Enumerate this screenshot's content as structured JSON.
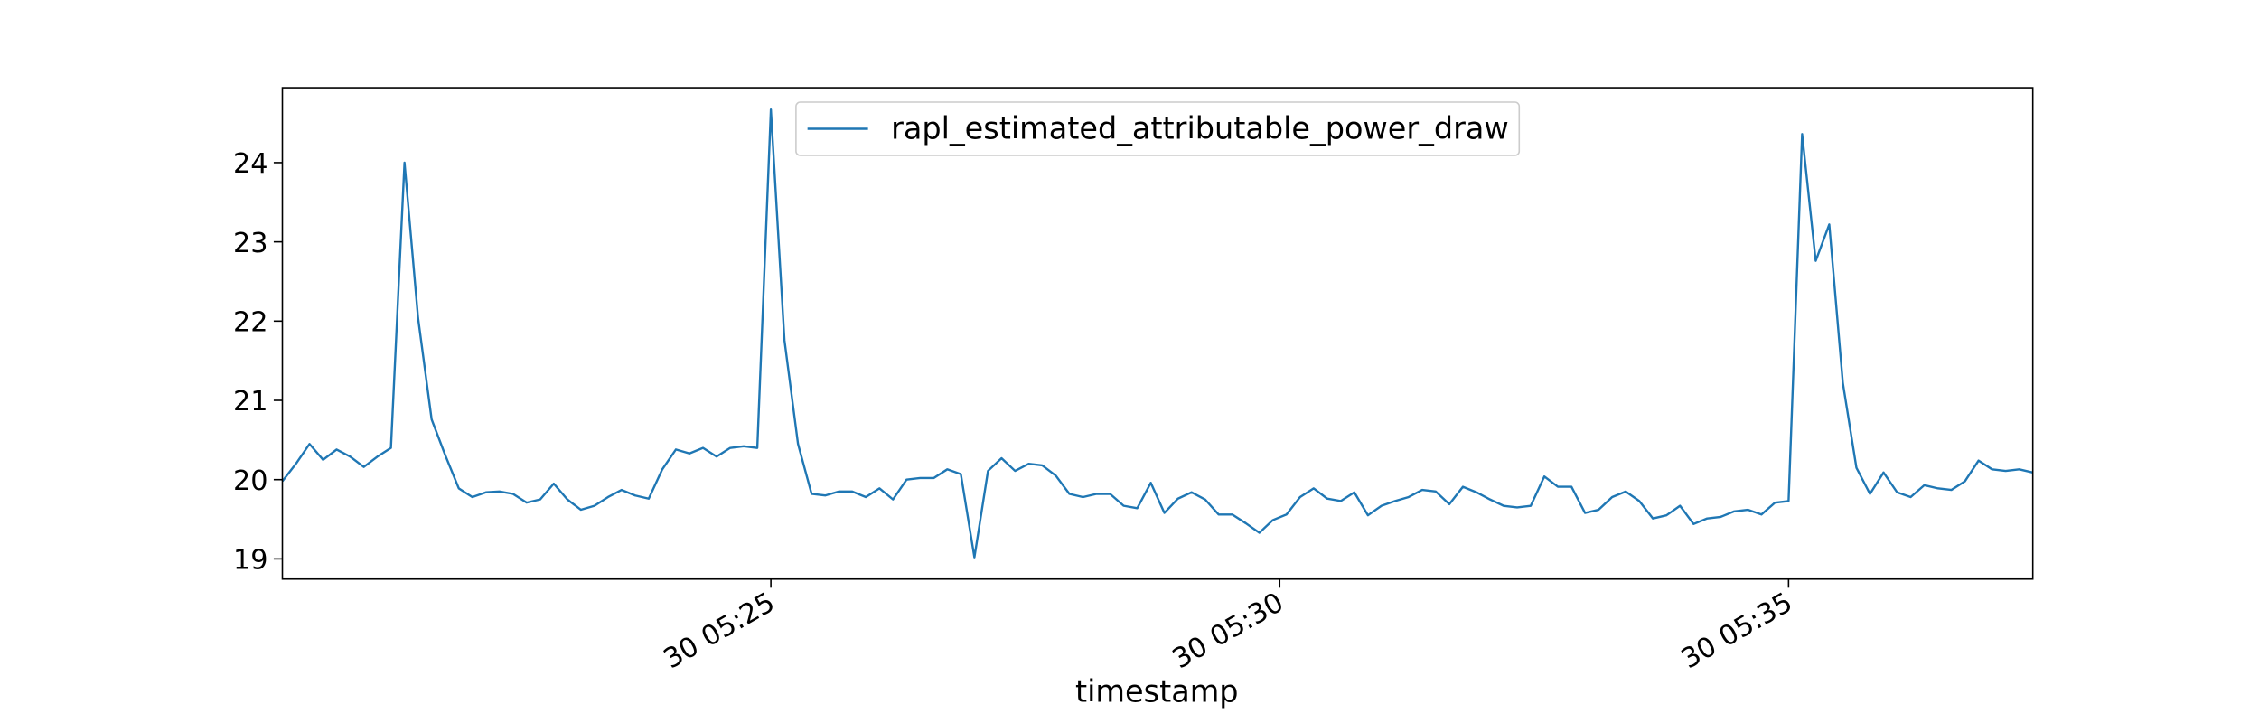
{
  "chart_data": {
    "type": "line",
    "xlabel": "timestamp",
    "legend": "upper center",
    "grid": false,
    "x": [
      "30 05:20:12",
      "30 05:20:20",
      "30 05:20:28",
      "30 05:20:36",
      "30 05:20:44",
      "30 05:20:52",
      "30 05:21:00",
      "30 05:21:08",
      "30 05:21:16",
      "30 05:21:24",
      "30 05:21:32",
      "30 05:21:40",
      "30 05:21:48",
      "30 05:21:56",
      "30 05:22:04",
      "30 05:22:12",
      "30 05:22:20",
      "30 05:22:28",
      "30 05:22:36",
      "30 05:22:44",
      "30 05:22:52",
      "30 05:23:00",
      "30 05:23:08",
      "30 05:23:16",
      "30 05:23:24",
      "30 05:23:32",
      "30 05:23:40",
      "30 05:23:48",
      "30 05:23:56",
      "30 05:24:04",
      "30 05:24:12",
      "30 05:24:20",
      "30 05:24:28",
      "30 05:24:36",
      "30 05:24:44",
      "30 05:24:52",
      "30 05:25:00",
      "30 05:25:08",
      "30 05:25:16",
      "30 05:25:24",
      "30 05:25:32",
      "30 05:25:40",
      "30 05:25:48",
      "30 05:25:56",
      "30 05:26:04",
      "30 05:26:12",
      "30 05:26:20",
      "30 05:26:28",
      "30 05:26:36",
      "30 05:26:44",
      "30 05:26:52",
      "30 05:27:00",
      "30 05:27:08",
      "30 05:27:16",
      "30 05:27:24",
      "30 05:27:32",
      "30 05:27:40",
      "30 05:27:48",
      "30 05:27:56",
      "30 05:28:04",
      "30 05:28:12",
      "30 05:28:20",
      "30 05:28:28",
      "30 05:28:36",
      "30 05:28:44",
      "30 05:28:52",
      "30 05:29:00",
      "30 05:29:08",
      "30 05:29:16",
      "30 05:29:24",
      "30 05:29:32",
      "30 05:29:40",
      "30 05:29:48",
      "30 05:29:56",
      "30 05:30:04",
      "30 05:30:12",
      "30 05:30:20",
      "30 05:30:28",
      "30 05:30:36",
      "30 05:30:44",
      "30 05:30:52",
      "30 05:31:00",
      "30 05:31:08",
      "30 05:31:16",
      "30 05:31:24",
      "30 05:31:32",
      "30 05:31:40",
      "30 05:31:48",
      "30 05:31:56",
      "30 05:32:04",
      "30 05:32:12",
      "30 05:32:20",
      "30 05:32:28",
      "30 05:32:36",
      "30 05:32:44",
      "30 05:32:52",
      "30 05:33:00",
      "30 05:33:08",
      "30 05:33:16",
      "30 05:33:24",
      "30 05:33:32",
      "30 05:33:40",
      "30 05:33:48",
      "30 05:33:56",
      "30 05:34:04",
      "30 05:34:12",
      "30 05:34:20",
      "30 05:34:28",
      "30 05:34:36",
      "30 05:34:44",
      "30 05:34:52",
      "30 05:35:00",
      "30 05:35:08",
      "30 05:35:16",
      "30 05:35:24",
      "30 05:35:32",
      "30 05:35:40",
      "30 05:35:48",
      "30 05:35:56",
      "30 05:36:04",
      "30 05:36:12",
      "30 05:36:20",
      "30 05:36:28",
      "30 05:36:36",
      "30 05:36:44",
      "30 05:36:52",
      "30 05:37:00",
      "30 05:37:08",
      "30 05:37:16",
      "30 05:37:24"
    ],
    "series": [
      {
        "name": "rapl_estimated_attributable_power_draw",
        "color": "#1f77b4",
        "values": [
          19.98,
          20.2,
          20.45,
          20.25,
          20.38,
          20.29,
          20.16,
          20.29,
          20.4,
          24.0,
          22.04,
          20.76,
          20.31,
          19.89,
          19.78,
          19.84,
          19.85,
          19.82,
          19.71,
          19.75,
          19.95,
          19.75,
          19.62,
          19.67,
          19.78,
          19.87,
          19.8,
          19.76,
          20.13,
          20.38,
          20.33,
          20.4,
          20.29,
          20.4,
          20.42,
          20.4,
          24.67,
          21.76,
          20.45,
          19.82,
          19.8,
          19.85,
          19.85,
          19.78,
          19.89,
          19.75,
          20.0,
          20.02,
          20.02,
          20.13,
          20.07,
          19.02,
          20.11,
          20.27,
          20.11,
          20.2,
          20.18,
          20.05,
          19.82,
          19.78,
          19.82,
          19.82,
          19.67,
          19.64,
          19.96,
          19.58,
          19.76,
          19.84,
          19.75,
          19.56,
          19.56,
          19.45,
          19.33,
          19.49,
          19.56,
          19.78,
          19.89,
          19.76,
          19.73,
          19.84,
          19.55,
          19.67,
          19.73,
          19.78,
          19.87,
          19.85,
          19.69,
          19.91,
          19.84,
          19.75,
          19.67,
          19.65,
          19.67,
          20.04,
          19.91,
          19.91,
          19.58,
          19.62,
          19.78,
          19.85,
          19.73,
          19.51,
          19.55,
          19.67,
          19.44,
          19.51,
          19.53,
          19.6,
          19.62,
          19.56,
          19.71,
          19.73,
          24.36,
          22.76,
          23.22,
          21.22,
          20.15,
          19.82,
          20.09,
          19.84,
          19.78,
          19.93,
          19.89,
          19.87,
          19.98,
          20.24,
          20.13,
          20.11,
          20.13,
          20.09
        ]
      }
    ],
    "xlim": [
      "30 05:20:12",
      "30 05:37:24"
    ],
    "xticks": [
      {
        "value": "30 05:25:00",
        "label": "30 05:25"
      },
      {
        "value": "30 05:30:00",
        "label": "30 05:30"
      },
      {
        "value": "30 05:35:00",
        "label": "30 05:35"
      }
    ],
    "ylim": [
      18.745,
      24.945
    ],
    "yticks": [
      19,
      20,
      21,
      22,
      23,
      24
    ]
  }
}
